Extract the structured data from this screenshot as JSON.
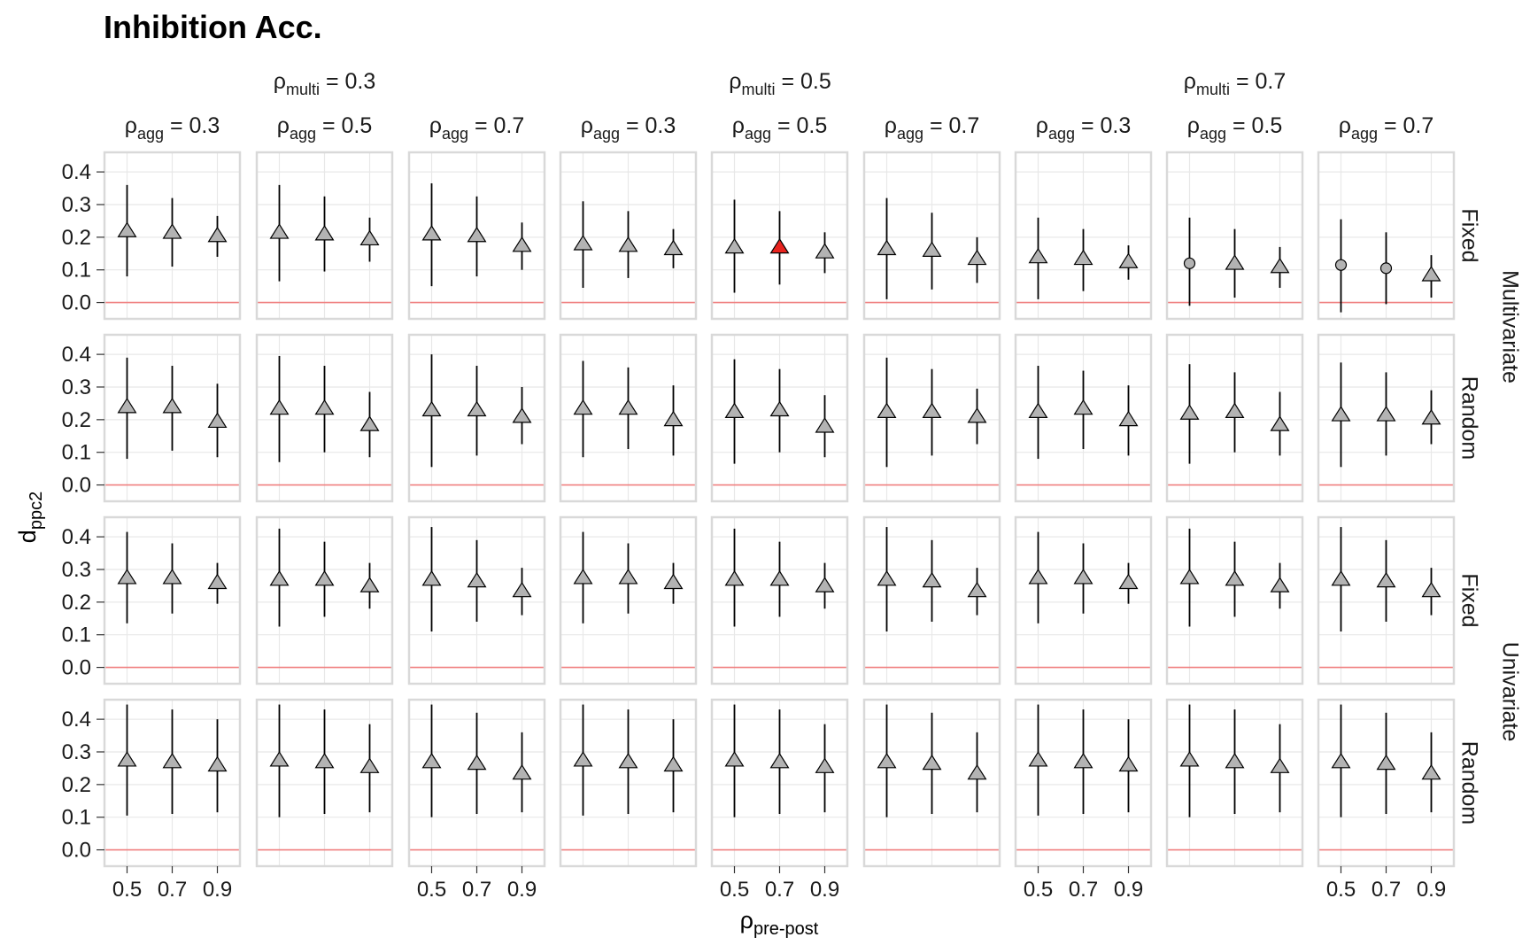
{
  "chart_data": {
    "type": "scatter",
    "title": "Inhibition Acc.",
    "xlabel_symbol": "ρ",
    "xlabel_sub": "pre-post",
    "ylabel_main": "d",
    "ylabel_sub": "ppc2",
    "x_ticks": [
      "0.5",
      "0.7",
      "0.9"
    ],
    "x_values": [
      0.5,
      0.7,
      0.9
    ],
    "y_ticks": [
      "0.0",
      "0.1",
      "0.2",
      "0.3",
      "0.4"
    ],
    "ylim": [
      -0.05,
      0.46
    ],
    "reference_line": 0.0,
    "grid": true,
    "multi_groups": [
      {
        "symbol": "ρ",
        "sub": "multi",
        "eq": " = 0.3"
      },
      {
        "symbol": "ρ",
        "sub": "multi",
        "eq": " = 0.5"
      },
      {
        "symbol": "ρ",
        "sub": "multi",
        "eq": " = 0.7"
      }
    ],
    "agg_strips": [
      {
        "symbol": "ρ",
        "sub": "agg",
        "eq": " = 0.3"
      },
      {
        "symbol": "ρ",
        "sub": "agg",
        "eq": " = 0.5"
      },
      {
        "symbol": "ρ",
        "sub": "agg",
        "eq": " = 0.7"
      }
    ],
    "row_strips": [
      "Fixed",
      "Random",
      "Fixed",
      "Random"
    ],
    "outer_row_strips": [
      "Multivariate",
      "Univariate"
    ],
    "colors": {
      "point_fill": "#b3b3b3",
      "highlight": "#e8231e",
      "ref_line": "#f08080",
      "panel_border": "#d9d9d9",
      "grid": "#e8e8e8"
    },
    "panels": [
      [
        {
          "points": [
            {
              "y": 0.22,
              "lo": 0.08,
              "hi": 0.36
            },
            {
              "y": 0.215,
              "lo": 0.11,
              "hi": 0.32
            },
            {
              "y": 0.205,
              "lo": 0.14,
              "hi": 0.265
            }
          ]
        },
        {
          "points": [
            {
              "y": 0.215,
              "lo": 0.065,
              "hi": 0.36
            },
            {
              "y": 0.21,
              "lo": 0.095,
              "hi": 0.325
            },
            {
              "y": 0.195,
              "lo": 0.125,
              "hi": 0.26
            }
          ]
        },
        {
          "points": [
            {
              "y": 0.21,
              "lo": 0.05,
              "hi": 0.365
            },
            {
              "y": 0.205,
              "lo": 0.08,
              "hi": 0.325
            },
            {
              "y": 0.175,
              "lo": 0.1,
              "hi": 0.245
            }
          ]
        },
        {
          "points": [
            {
              "y": 0.18,
              "lo": 0.045,
              "hi": 0.31
            },
            {
              "y": 0.175,
              "lo": 0.075,
              "hi": 0.28
            },
            {
              "y": 0.165,
              "lo": 0.105,
              "hi": 0.225
            }
          ]
        },
        {
          "points": [
            {
              "y": 0.17,
              "lo": 0.03,
              "hi": 0.315
            },
            {
              "y": 0.17,
              "lo": 0.055,
              "hi": 0.28,
              "highlight": true
            },
            {
              "y": 0.155,
              "lo": 0.09,
              "hi": 0.215
            }
          ]
        },
        {
          "points": [
            {
              "y": 0.165,
              "lo": 0.01,
              "hi": 0.32
            },
            {
              "y": 0.16,
              "lo": 0.04,
              "hi": 0.275
            },
            {
              "y": 0.135,
              "lo": 0.06,
              "hi": 0.2
            }
          ]
        },
        {
          "points": [
            {
              "y": 0.14,
              "lo": 0.01,
              "hi": 0.26
            },
            {
              "y": 0.135,
              "lo": 0.035,
              "hi": 0.225
            },
            {
              "y": 0.125,
              "lo": 0.07,
              "hi": 0.175
            }
          ]
        },
        {
          "points": [
            {
              "y": 0.12,
              "lo": -0.01,
              "hi": 0.26,
              "shape": "circle"
            },
            {
              "y": 0.12,
              "lo": 0.015,
              "hi": 0.225
            },
            {
              "y": 0.11,
              "lo": 0.045,
              "hi": 0.17
            }
          ]
        },
        {
          "points": [
            {
              "y": 0.115,
              "lo": -0.03,
              "hi": 0.255,
              "shape": "circle"
            },
            {
              "y": 0.105,
              "lo": -0.005,
              "hi": 0.215,
              "shape": "circle"
            },
            {
              "y": 0.085,
              "lo": 0.015,
              "hi": 0.145
            }
          ]
        }
      ],
      [
        {
          "points": [
            {
              "y": 0.24,
              "lo": 0.08,
              "hi": 0.39
            },
            {
              "y": 0.24,
              "lo": 0.105,
              "hi": 0.365
            },
            {
              "y": 0.195,
              "lo": 0.085,
              "hi": 0.31
            }
          ]
        },
        {
          "points": [
            {
              "y": 0.235,
              "lo": 0.07,
              "hi": 0.395
            },
            {
              "y": 0.235,
              "lo": 0.1,
              "hi": 0.365
            },
            {
              "y": 0.185,
              "lo": 0.085,
              "hi": 0.285
            }
          ]
        },
        {
          "points": [
            {
              "y": 0.23,
              "lo": 0.055,
              "hi": 0.4
            },
            {
              "y": 0.23,
              "lo": 0.09,
              "hi": 0.365
            },
            {
              "y": 0.21,
              "lo": 0.125,
              "hi": 0.3
            }
          ]
        },
        {
          "points": [
            {
              "y": 0.235,
              "lo": 0.085,
              "hi": 0.38
            },
            {
              "y": 0.235,
              "lo": 0.11,
              "hi": 0.36
            },
            {
              "y": 0.2,
              "lo": 0.09,
              "hi": 0.305
            }
          ]
        },
        {
          "points": [
            {
              "y": 0.225,
              "lo": 0.065,
              "hi": 0.385
            },
            {
              "y": 0.23,
              "lo": 0.1,
              "hi": 0.355
            },
            {
              "y": 0.18,
              "lo": 0.085,
              "hi": 0.275
            }
          ]
        },
        {
          "points": [
            {
              "y": 0.225,
              "lo": 0.055,
              "hi": 0.39
            },
            {
              "y": 0.225,
              "lo": 0.09,
              "hi": 0.355
            },
            {
              "y": 0.21,
              "lo": 0.125,
              "hi": 0.295
            }
          ]
        },
        {
          "points": [
            {
              "y": 0.225,
              "lo": 0.08,
              "hi": 0.365
            },
            {
              "y": 0.235,
              "lo": 0.11,
              "hi": 0.35
            },
            {
              "y": 0.2,
              "lo": 0.09,
              "hi": 0.305
            }
          ]
        },
        {
          "points": [
            {
              "y": 0.22,
              "lo": 0.065,
              "hi": 0.37
            },
            {
              "y": 0.225,
              "lo": 0.1,
              "hi": 0.345
            },
            {
              "y": 0.185,
              "lo": 0.09,
              "hi": 0.285
            }
          ]
        },
        {
          "points": [
            {
              "y": 0.215,
              "lo": 0.055,
              "hi": 0.375
            },
            {
              "y": 0.215,
              "lo": 0.09,
              "hi": 0.345
            },
            {
              "y": 0.205,
              "lo": 0.125,
              "hi": 0.29
            }
          ]
        }
      ],
      [
        {
          "points": [
            {
              "y": 0.275,
              "lo": 0.135,
              "hi": 0.415
            },
            {
              "y": 0.275,
              "lo": 0.165,
              "hi": 0.38
            },
            {
              "y": 0.26,
              "lo": 0.195,
              "hi": 0.32
            }
          ]
        },
        {
          "points": [
            {
              "y": 0.27,
              "lo": 0.125,
              "hi": 0.425
            },
            {
              "y": 0.27,
              "lo": 0.155,
              "hi": 0.385
            },
            {
              "y": 0.25,
              "lo": 0.18,
              "hi": 0.32
            }
          ]
        },
        {
          "points": [
            {
              "y": 0.27,
              "lo": 0.11,
              "hi": 0.43
            },
            {
              "y": 0.265,
              "lo": 0.14,
              "hi": 0.39
            },
            {
              "y": 0.235,
              "lo": 0.16,
              "hi": 0.305
            }
          ]
        },
        {
          "points": [
            {
              "y": 0.275,
              "lo": 0.135,
              "hi": 0.415
            },
            {
              "y": 0.275,
              "lo": 0.165,
              "hi": 0.38
            },
            {
              "y": 0.26,
              "lo": 0.195,
              "hi": 0.32
            }
          ]
        },
        {
          "points": [
            {
              "y": 0.27,
              "lo": 0.125,
              "hi": 0.425
            },
            {
              "y": 0.27,
              "lo": 0.155,
              "hi": 0.385
            },
            {
              "y": 0.25,
              "lo": 0.18,
              "hi": 0.32
            }
          ]
        },
        {
          "points": [
            {
              "y": 0.27,
              "lo": 0.11,
              "hi": 0.43
            },
            {
              "y": 0.265,
              "lo": 0.14,
              "hi": 0.39
            },
            {
              "y": 0.235,
              "lo": 0.16,
              "hi": 0.305
            }
          ]
        },
        {
          "points": [
            {
              "y": 0.275,
              "lo": 0.135,
              "hi": 0.415
            },
            {
              "y": 0.275,
              "lo": 0.165,
              "hi": 0.38
            },
            {
              "y": 0.26,
              "lo": 0.195,
              "hi": 0.32
            }
          ]
        },
        {
          "points": [
            {
              "y": 0.275,
              "lo": 0.125,
              "hi": 0.425
            },
            {
              "y": 0.27,
              "lo": 0.155,
              "hi": 0.385
            },
            {
              "y": 0.25,
              "lo": 0.18,
              "hi": 0.32
            }
          ]
        },
        {
          "points": [
            {
              "y": 0.27,
              "lo": 0.11,
              "hi": 0.43
            },
            {
              "y": 0.265,
              "lo": 0.14,
              "hi": 0.39
            },
            {
              "y": 0.235,
              "lo": 0.16,
              "hi": 0.305
            }
          ]
        }
      ],
      [
        {
          "points": [
            {
              "y": 0.275,
              "lo": 0.105,
              "hi": 0.445
            },
            {
              "y": 0.27,
              "lo": 0.11,
              "hi": 0.43
            },
            {
              "y": 0.26,
              "lo": 0.115,
              "hi": 0.4
            }
          ]
        },
        {
          "points": [
            {
              "y": 0.275,
              "lo": 0.1,
              "hi": 0.445
            },
            {
              "y": 0.27,
              "lo": 0.11,
              "hi": 0.43
            },
            {
              "y": 0.255,
              "lo": 0.115,
              "hi": 0.385
            }
          ]
        },
        {
          "points": [
            {
              "y": 0.27,
              "lo": 0.1,
              "hi": 0.445
            },
            {
              "y": 0.265,
              "lo": 0.11,
              "hi": 0.42
            },
            {
              "y": 0.235,
              "lo": 0.115,
              "hi": 0.36
            }
          ]
        },
        {
          "points": [
            {
              "y": 0.275,
              "lo": 0.105,
              "hi": 0.445
            },
            {
              "y": 0.27,
              "lo": 0.11,
              "hi": 0.43
            },
            {
              "y": 0.26,
              "lo": 0.115,
              "hi": 0.4
            }
          ]
        },
        {
          "points": [
            {
              "y": 0.275,
              "lo": 0.1,
              "hi": 0.445
            },
            {
              "y": 0.27,
              "lo": 0.11,
              "hi": 0.43
            },
            {
              "y": 0.255,
              "lo": 0.115,
              "hi": 0.385
            }
          ]
        },
        {
          "points": [
            {
              "y": 0.27,
              "lo": 0.1,
              "hi": 0.445
            },
            {
              "y": 0.265,
              "lo": 0.11,
              "hi": 0.42
            },
            {
              "y": 0.235,
              "lo": 0.115,
              "hi": 0.36
            }
          ]
        },
        {
          "points": [
            {
              "y": 0.275,
              "lo": 0.105,
              "hi": 0.445
            },
            {
              "y": 0.27,
              "lo": 0.11,
              "hi": 0.43
            },
            {
              "y": 0.26,
              "lo": 0.115,
              "hi": 0.4
            }
          ]
        },
        {
          "points": [
            {
              "y": 0.275,
              "lo": 0.1,
              "hi": 0.445
            },
            {
              "y": 0.27,
              "lo": 0.11,
              "hi": 0.43
            },
            {
              "y": 0.255,
              "lo": 0.115,
              "hi": 0.385
            }
          ]
        },
        {
          "points": [
            {
              "y": 0.27,
              "lo": 0.1,
              "hi": 0.445
            },
            {
              "y": 0.265,
              "lo": 0.11,
              "hi": 0.42
            },
            {
              "y": 0.235,
              "lo": 0.115,
              "hi": 0.36
            }
          ]
        }
      ]
    ]
  }
}
